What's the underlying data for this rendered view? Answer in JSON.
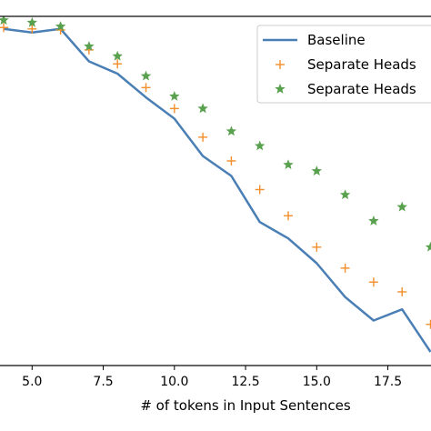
{
  "chart_data": {
    "type": "line",
    "title": "",
    "xlabel": "# of tokens in Input Sentences",
    "ylabel": "",
    "xlim": [
      4,
      19
    ],
    "ylim": [
      0,
      1
    ],
    "grid": false,
    "legend_placement": "top-right",
    "x_ticks": [
      5.0,
      7.5,
      10.0,
      12.5,
      15.0,
      17.5
    ],
    "x_tick_labels": [
      "5.0",
      "7.5",
      "10.0",
      "12.5",
      "15.0",
      "17.5"
    ],
    "series": [
      {
        "name": "Baseline",
        "style": "line",
        "color": "#4a7fb5",
        "x": [
          4,
          5,
          6,
          7,
          8,
          9,
          10,
          11,
          12,
          13,
          14,
          15,
          16,
          17,
          18,
          19
        ],
        "y": [
          0.964,
          0.954,
          0.964,
          0.871,
          0.836,
          0.768,
          0.707,
          0.6,
          0.543,
          0.411,
          0.364,
          0.293,
          0.196,
          0.129,
          0.161,
          0.039
        ]
      },
      {
        "name": "Separate Heads",
        "style": "marker-plus",
        "color": "#f28e2b",
        "x": [
          4,
          5,
          6,
          7,
          8,
          9,
          10,
          11,
          12,
          13,
          14,
          15,
          16,
          17,
          18,
          19
        ],
        "y": [
          0.968,
          0.964,
          0.961,
          0.904,
          0.864,
          0.796,
          0.736,
          0.654,
          0.586,
          0.504,
          0.429,
          0.339,
          0.279,
          0.239,
          0.211,
          0.118
        ]
      },
      {
        "name": "Separate Heads",
        "style": "marker-star",
        "color": "#59a14f",
        "x": [
          4,
          5,
          6,
          7,
          8,
          9,
          10,
          11,
          12,
          13,
          14,
          15,
          16,
          17,
          18,
          19
        ],
        "y": [
          0.989,
          0.982,
          0.971,
          0.914,
          0.886,
          0.829,
          0.771,
          0.736,
          0.671,
          0.629,
          0.575,
          0.557,
          0.489,
          0.414,
          0.454,
          0.339
        ]
      }
    ]
  }
}
